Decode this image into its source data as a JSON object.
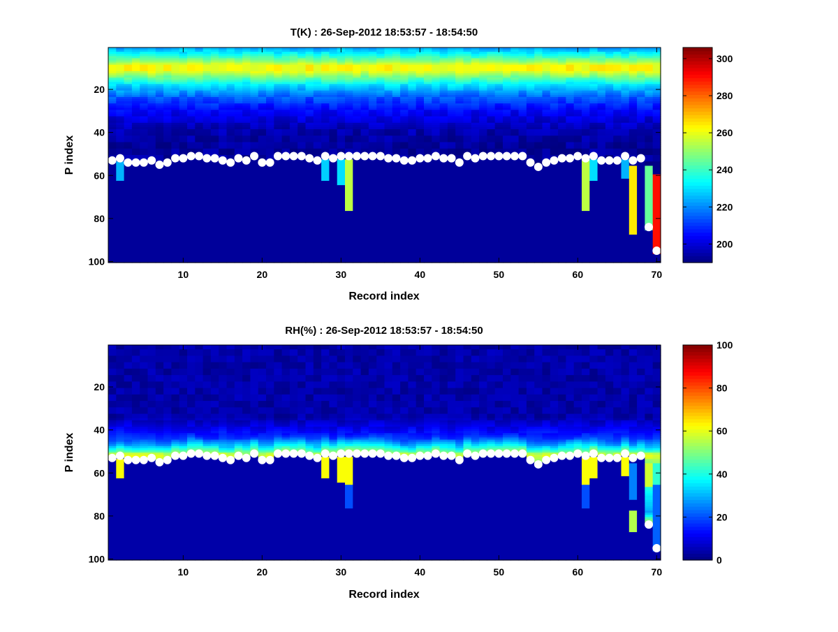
{
  "chart_data": [
    {
      "type": "heatmap",
      "title": "T(K) : 26-Sep-2012 18:53:57 - 18:54:50",
      "xlabel": "Record index",
      "ylabel": "P index",
      "xlim": [
        0.5,
        70.5
      ],
      "ylim": [
        100,
        1
      ],
      "y_reversed": true,
      "xticks": [
        "10",
        "20",
        "30",
        "40",
        "50",
        "60",
        "70"
      ],
      "yticks": [
        "20",
        "40",
        "60",
        "80",
        "100"
      ],
      "colormap": "jet",
      "clim": [
        190,
        306
      ],
      "colorbar_ticks": [
        "200",
        "220",
        "240",
        "260",
        "280",
        "300"
      ],
      "upper_profile_K": [
        [
          1,
          224
        ],
        [
          4,
          236
        ],
        [
          7,
          250
        ],
        [
          9,
          262
        ],
        [
          11,
          262
        ],
        [
          14,
          248
        ],
        [
          18,
          230
        ],
        [
          24,
          214
        ],
        [
          30,
          204
        ],
        [
          38,
          196
        ],
        [
          48,
          193
        ],
        [
          100,
          193
        ]
      ],
      "surface_markers": {
        "x": [
          1,
          2,
          3,
          4,
          5,
          6,
          7,
          8,
          9,
          10,
          11,
          12,
          13,
          14,
          15,
          16,
          17,
          18,
          19,
          20,
          21,
          22,
          23,
          24,
          25,
          26,
          27,
          28,
          29,
          30,
          31,
          32,
          33,
          34,
          35,
          36,
          37,
          38,
          39,
          40,
          41,
          42,
          43,
          44,
          45,
          46,
          47,
          48,
          49,
          50,
          51,
          52,
          53,
          54,
          55,
          56,
          57,
          58,
          59,
          60,
          61,
          62,
          63,
          64,
          65,
          66,
          67,
          68,
          69,
          70
        ],
        "y": [
          53,
          52,
          54,
          54,
          54,
          53,
          55,
          54,
          52,
          52,
          51,
          51,
          52,
          52,
          53,
          54,
          52,
          53,
          51,
          54,
          54,
          51,
          51,
          51,
          51,
          52,
          53,
          51,
          52,
          51,
          51,
          51,
          51,
          51,
          51,
          52,
          52,
          53,
          53,
          52,
          52,
          51,
          52,
          52,
          54,
          51,
          52,
          51,
          51,
          51,
          51,
          51,
          51,
          54,
          56,
          54,
          53,
          52,
          52,
          51,
          52,
          51,
          53,
          53,
          53,
          51,
          53,
          52,
          84,
          95
        ]
      },
      "column_streaks": [
        {
          "x": 2,
          "y0": 54,
          "y1": 62,
          "value": 225
        },
        {
          "x": 28,
          "y0": 53,
          "y1": 62,
          "value": 228
        },
        {
          "x": 30,
          "y0": 53,
          "y1": 64,
          "value": 230
        },
        {
          "x": 31,
          "y0": 53,
          "y1": 76,
          "value": 255
        },
        {
          "x": 61,
          "y0": 53,
          "y1": 76,
          "value": 255
        },
        {
          "x": 62,
          "y0": 53,
          "y1": 62,
          "value": 230
        },
        {
          "x": 66,
          "y0": 53,
          "y1": 61,
          "value": 225
        },
        {
          "x": 67,
          "y0": 56,
          "y1": 87,
          "value": 265
        },
        {
          "x": 69,
          "y0": 56,
          "y1": 85,
          "value": 245
        },
        {
          "x": 70,
          "y0": 60,
          "y1": 96,
          "value": 290
        }
      ]
    },
    {
      "type": "heatmap",
      "title": "RH(%) : 26-Sep-2012 18:53:57 - 18:54:50",
      "xlabel": "Record index",
      "ylabel": "P index",
      "xlim": [
        0.5,
        70.5
      ],
      "ylim": [
        100,
        1
      ],
      "y_reversed": true,
      "xticks": [
        "10",
        "20",
        "30",
        "40",
        "50",
        "60",
        "70"
      ],
      "yticks": [
        "20",
        "40",
        "60",
        "80",
        "100"
      ],
      "colormap": "jet",
      "clim": [
        0,
        100
      ],
      "colorbar_ticks": [
        "0",
        "20",
        "40",
        "60",
        "80",
        "100"
      ],
      "upper_profile_pct": [
        [
          1,
          4
        ],
        [
          34,
          4
        ],
        [
          40,
          12
        ],
        [
          44,
          18
        ],
        [
          47,
          28
        ],
        [
          49,
          38
        ],
        [
          50,
          45
        ],
        [
          51,
          54
        ],
        [
          52,
          58
        ],
        [
          100,
          4
        ]
      ],
      "surface_markers_same_as_first": true,
      "column_streaks": [
        {
          "x": 2,
          "y0": 54,
          "y1": 62,
          "value": 62
        },
        {
          "x": 28,
          "y0": 53,
          "y1": 62,
          "value": 62
        },
        {
          "x": 30,
          "y0": 53,
          "y1": 64,
          "value": 62
        },
        {
          "x": 31,
          "y0": 53,
          "y1": 66,
          "value": 62
        },
        {
          "x": 31,
          "y0": 66,
          "y1": 76,
          "value": 20
        },
        {
          "x": 61,
          "y0": 53,
          "y1": 66,
          "value": 62
        },
        {
          "x": 61,
          "y0": 66,
          "y1": 76,
          "value": 20
        },
        {
          "x": 62,
          "y0": 53,
          "y1": 62,
          "value": 62
        },
        {
          "x": 66,
          "y0": 53,
          "y1": 61,
          "value": 62
        },
        {
          "x": 67,
          "y0": 56,
          "y1": 72,
          "value": 25
        },
        {
          "x": 67,
          "y0": 78,
          "y1": 87,
          "value": 55
        },
        {
          "x": 69,
          "y0": 56,
          "y1": 66,
          "value": 58
        },
        {
          "x": 70,
          "y0": 56,
          "y1": 66,
          "value": 42
        },
        {
          "x": 70,
          "y0": 66,
          "y1": 96,
          "value": 22
        }
      ]
    }
  ]
}
